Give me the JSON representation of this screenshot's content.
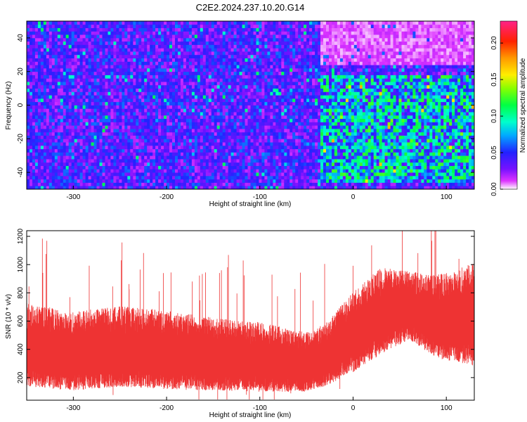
{
  "title": "C2E2.2024.237.10.20.G14",
  "chart_data": [
    {
      "type": "heatmap",
      "title": "C2E2.2024.237.10.20.G14",
      "xlabel": "Height of straight line (km)",
      "ylabel": "Frequency (Hz)",
      "xlim": [
        -350,
        130
      ],
      "ylim": [
        -50,
        50
      ],
      "xticks": [
        -300,
        -200,
        -100,
        0,
        100
      ],
      "yticks": [
        -40,
        -20,
        0,
        20,
        40
      ],
      "colorbar": {
        "label": "Normalized spectral amplitude",
        "range": [
          0,
          0.23
        ],
        "ticks": [
          "0.00",
          "0.05",
          "0.10",
          "0.15",
          "0.20"
        ],
        "tick_values": [
          0.0,
          0.05,
          0.1,
          0.15,
          0.2
        ]
      },
      "regions": [
        {
          "x": [
            -350,
            -35
          ],
          "y": [
            -50,
            50
          ],
          "amplitude": 0.04
        },
        {
          "x": [
            -35,
            130
          ],
          "y": [
            -45,
            18
          ],
          "amplitude": 0.08
        },
        {
          "x": [
            -35,
            130
          ],
          "y": [
            25,
            50
          ],
          "amplitude": 0.01
        }
      ]
    },
    {
      "type": "line",
      "xlabel": "Height of straight line (km)",
      "ylabel": "SNR (10 * v/v)",
      "xlim": [
        -350,
        130
      ],
      "ylim": [
        40,
        1240
      ],
      "xticks": [
        -300,
        -200,
        -100,
        0,
        100
      ],
      "yticks": [
        200,
        400,
        600,
        800,
        1000,
        1200
      ],
      "series": [
        {
          "name": "SNR",
          "color": "#ee3333",
          "x": [
            -350,
            -300,
            -250,
            -200,
            -150,
            -100,
            -50,
            -30,
            0,
            30,
            60,
            90,
            130
          ],
          "upper": [
            700,
            640,
            680,
            650,
            600,
            570,
            500,
            560,
            780,
            950,
            930,
            900,
            980
          ],
          "lower": [
            150,
            120,
            150,
            130,
            120,
            110,
            110,
            150,
            250,
            380,
            480,
            350,
            300
          ]
        }
      ]
    }
  ]
}
